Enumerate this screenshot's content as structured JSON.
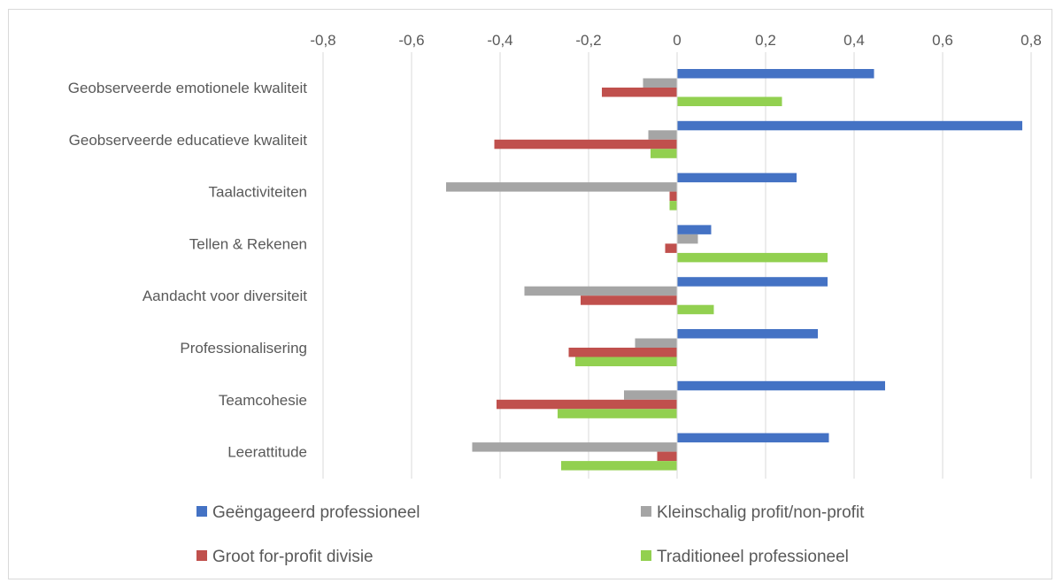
{
  "chart_data": {
    "type": "bar",
    "orientation": "horizontal",
    "categories": [
      "Geobserveerde emotionele kwaliteit",
      "Geobserveerde educatieve kwaliteit",
      "Taalactiviteiten",
      "Tellen & Rekenen",
      "Aandacht voor diversiteit",
      "Professionalisering",
      "Teamcohesie",
      "Leerattitude"
    ],
    "series": [
      {
        "name": "Geëngageerd professioneel",
        "color": "#4472c4",
        "values": [
          0.445,
          0.78,
          0.27,
          0.077,
          0.34,
          0.318,
          0.47,
          0.343
        ]
      },
      {
        "name": "Kleinschalig profit/non-profit",
        "color": "#a5a5a5",
        "values": [
          -0.077,
          -0.065,
          -0.522,
          0.047,
          -0.345,
          -0.095,
          -0.12,
          -0.463
        ]
      },
      {
        "name": "Groot for-profit divisie",
        "color": "#c0504d",
        "values": [
          -0.17,
          -0.413,
          -0.017,
          -0.027,
          -0.218,
          -0.245,
          -0.408,
          -0.045
        ]
      },
      {
        "name": "Traditioneel professioneel",
        "color": "#92d050",
        "values": [
          0.237,
          -0.06,
          -0.017,
          0.34,
          0.083,
          -0.23,
          -0.27,
          -0.262
        ]
      }
    ],
    "ticks": [
      "-0,8",
      "-0,6",
      "-0,4",
      "-0,2",
      "0",
      "0,2",
      "0,4",
      "0,6",
      "0,8"
    ],
    "xlim": [
      -0.8,
      0.8
    ],
    "gridlines": true,
    "axis_position": "top",
    "legend_position": "bottom"
  }
}
